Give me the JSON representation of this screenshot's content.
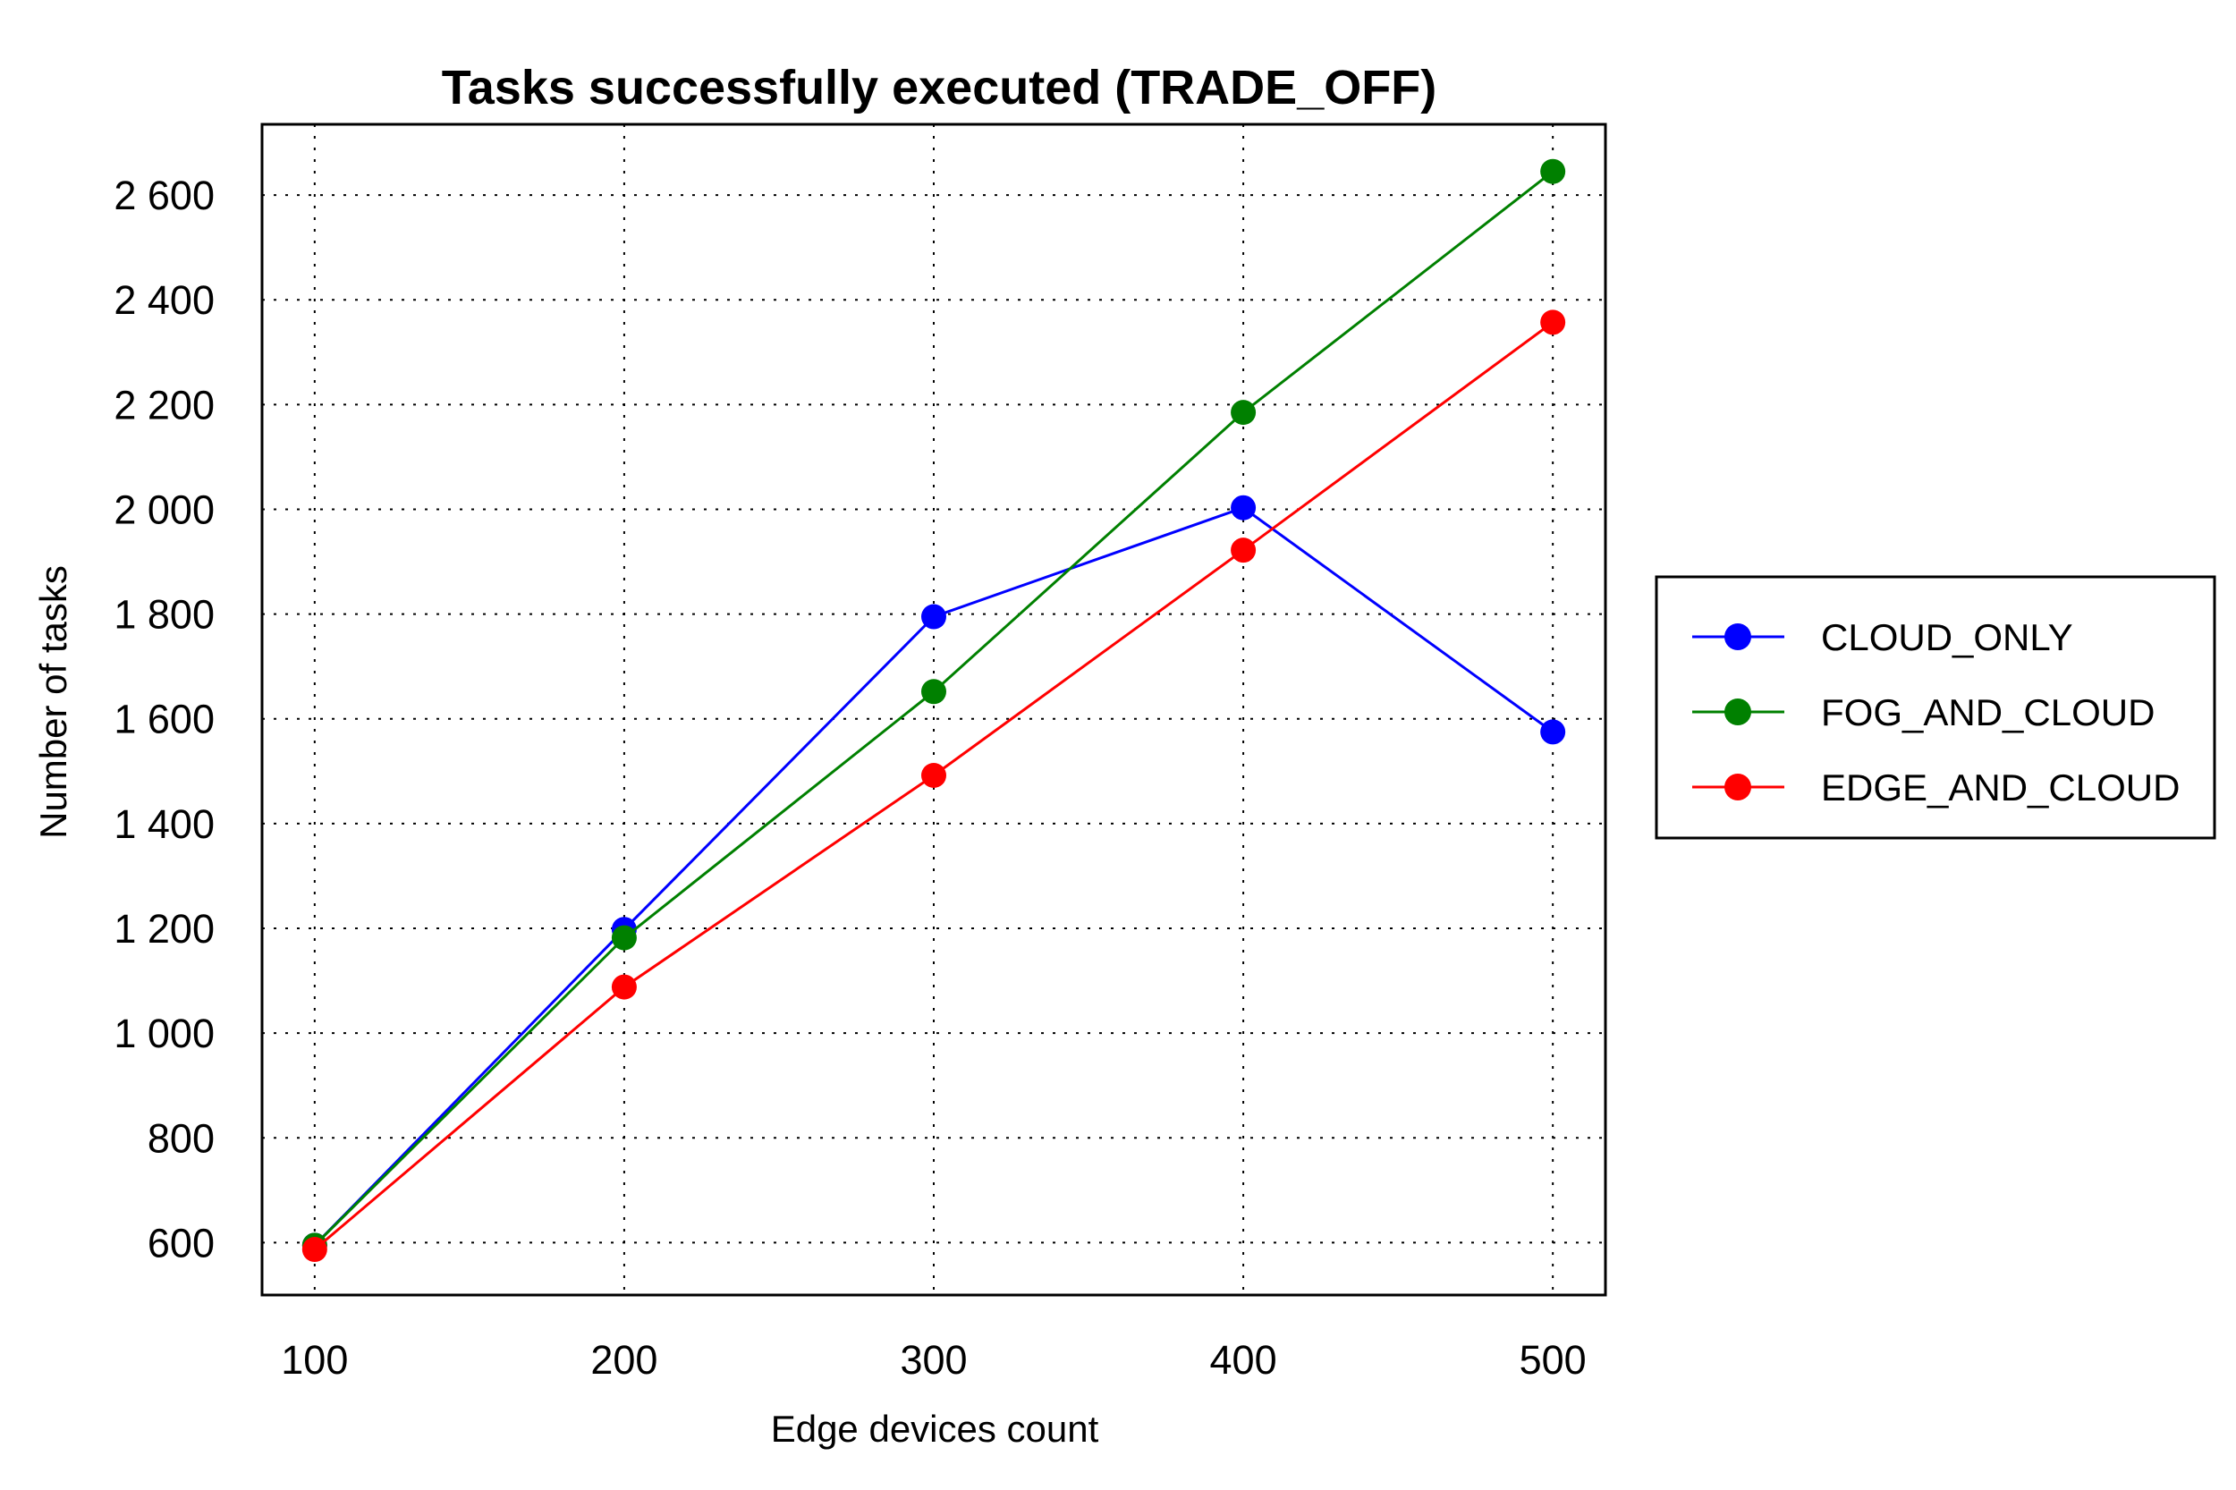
{
  "chart_data": {
    "type": "line",
    "title": "Tasks successfully executed (TRADE_OFF)",
    "xlabel": "Edge devices count",
    "ylabel": "Number of tasks",
    "x": [
      100,
      200,
      300,
      400,
      500
    ],
    "x_tick_labels": [
      "100",
      "200",
      "300",
      "400",
      "500"
    ],
    "y_ticks": [
      600,
      800,
      1000,
      1200,
      1400,
      1600,
      1800,
      2000,
      2200,
      2400,
      2600
    ],
    "y_tick_labels": [
      "600",
      "800",
      "1 000",
      "1 200",
      "1 400",
      "1 600",
      "1 800",
      "2 000",
      "2 200",
      "2 400",
      "2 600"
    ],
    "xlim": [
      83,
      517
    ],
    "ylim": [
      500,
      2735
    ],
    "grid": true,
    "legend_position": "right",
    "series": [
      {
        "name": "CLOUD_ONLY",
        "color": "#0000ff",
        "values": [
          595,
          1198,
          1795,
          2003,
          1575
        ]
      },
      {
        "name": "FOG_AND_CLOUD",
        "color": "#008000",
        "values": [
          595,
          1182,
          1652,
          2185,
          2645
        ]
      },
      {
        "name": "EDGE_AND_CLOUD",
        "color": "#ff0000",
        "values": [
          587,
          1088,
          1492,
          1922,
          2357
        ]
      }
    ]
  }
}
